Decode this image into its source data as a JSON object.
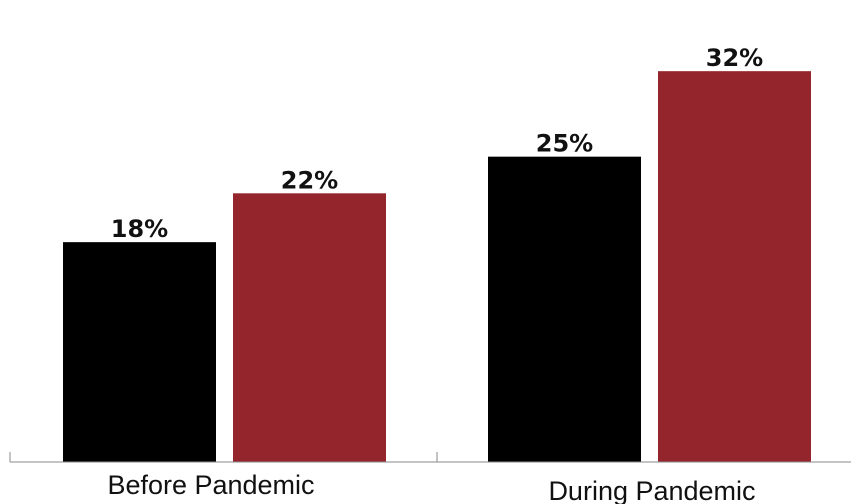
{
  "chart_data": {
    "type": "bar",
    "categories": [
      "Before Pandemic",
      "During Pandemic"
    ],
    "series": [
      {
        "values": [
          18,
          25
        ],
        "color": "#000000"
      },
      {
        "values": [
          22,
          32
        ],
        "color": "#94252c"
      }
    ],
    "data_labels": [
      [
        "18%",
        "25%"
      ],
      [
        "22%",
        "32%"
      ]
    ],
    "ylim": [
      0,
      37.5
    ],
    "grid": false,
    "legend": "none"
  }
}
